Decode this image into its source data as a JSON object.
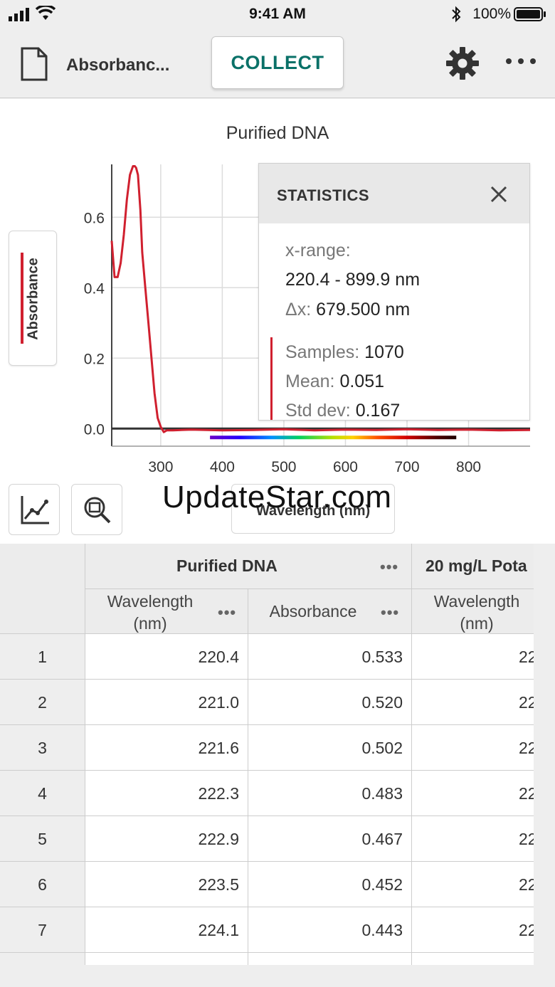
{
  "status_bar": {
    "time": "9:41 AM",
    "battery": "100%"
  },
  "toolbar": {
    "file_name": "Absorbanc...",
    "collect_label": "COLLECT"
  },
  "graph": {
    "title": "Purified DNA",
    "y_label": "Absorbance",
    "x_label": "Wavelength (nm)",
    "series_color": "#d0202f"
  },
  "chart_data": {
    "type": "line",
    "title": "Purified DNA",
    "xlabel": "Wavelength (nm)",
    "ylabel": "Absorbance",
    "xlim": [
      220.4,
      899.9
    ],
    "ylim": [
      -0.05,
      0.75
    ],
    "x_ticks": [
      "300",
      "400",
      "500",
      "600",
      "700",
      "800"
    ],
    "y_ticks": [
      "0.0",
      "0.2",
      "0.4",
      "0.6"
    ],
    "grid": true,
    "series": [
      {
        "x": [
          220.4,
          225,
          230,
          235,
          240,
          245,
          250,
          255,
          258,
          260,
          263,
          267,
          270,
          275,
          280,
          285,
          290,
          295,
          300,
          305,
          310,
          320,
          350,
          400,
          450,
          500,
          550,
          600,
          650,
          700,
          750,
          800,
          850,
          899.9
        ],
        "y": [
          0.533,
          0.43,
          0.43,
          0.47,
          0.55,
          0.65,
          0.72,
          0.745,
          0.745,
          0.74,
          0.72,
          0.62,
          0.5,
          0.4,
          0.3,
          0.2,
          0.1,
          0.03,
          0.005,
          -0.01,
          -0.005,
          -0.005,
          -0.003,
          -0.005,
          -0.004,
          -0.002,
          -0.005,
          -0.003,
          -0.004,
          -0.002,
          -0.004,
          -0.003,
          -0.005,
          -0.004
        ]
      }
    ]
  },
  "statistics": {
    "title": "STATISTICS",
    "x_range_label": "x-range:",
    "x_range_value": "220.4 - 899.9 nm",
    "dx_label": "Δx:",
    "dx_value": "679.500 nm",
    "samples_label": "Samples:",
    "samples_value": "1070",
    "mean_label": "Mean:",
    "mean_value": "0.051",
    "std_label": "Std dev:",
    "std_value": "0.167"
  },
  "watermark": "UpdateStar.com",
  "table": {
    "group1": "Purified DNA",
    "group2": "20 mg/L Pota",
    "col_wavelength_1": "Wavelength",
    "col_wavelength_2": "(nm)",
    "col_absorbance": "Absorbance",
    "rows": [
      {
        "n": "1",
        "w": "220.4",
        "a": "0.533",
        "w2": "22"
      },
      {
        "n": "2",
        "w": "221.0",
        "a": "0.520",
        "w2": "22"
      },
      {
        "n": "3",
        "w": "221.6",
        "a": "0.502",
        "w2": "22"
      },
      {
        "n": "4",
        "w": "222.3",
        "a": "0.483",
        "w2": "22"
      },
      {
        "n": "5",
        "w": "222.9",
        "a": "0.467",
        "w2": "22"
      },
      {
        "n": "6",
        "w": "223.5",
        "a": "0.452",
        "w2": "22"
      },
      {
        "n": "7",
        "w": "224.1",
        "a": "0.443",
        "w2": "22"
      },
      {
        "n": "",
        "w": "",
        "a": "",
        "w2": ""
      }
    ]
  }
}
